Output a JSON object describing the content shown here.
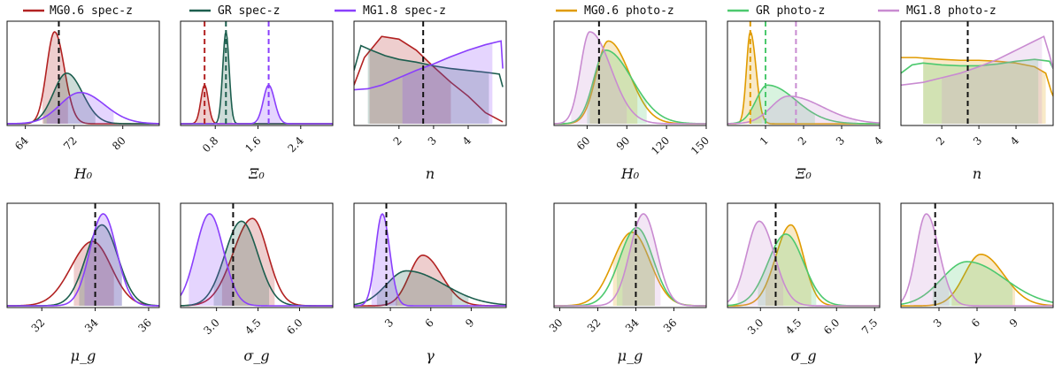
{
  "colors": {
    "MG0.6 spec-z": "#b22222",
    "GR spec-z": "#1c5e4e",
    "MG1.8 spec-z": "#8a3ffc",
    "MG0.6 photo-z": "#e09b00",
    "GR photo-z": "#4cc96e",
    "MG1.8 photo-z": "#c98bd1"
  },
  "legend": [
    {
      "label": "MG0.6 spec-z",
      "color_key": "MG0.6 spec-z"
    },
    {
      "label": "GR spec-z",
      "color_key": "GR spec-z"
    },
    {
      "label": "MG1.8 spec-z",
      "color_key": "MG1.8 spec-z"
    },
    {
      "label": "MG0.6 photo-z",
      "color_key": "MG0.6 photo-z"
    },
    {
      "label": "GR photo-z",
      "color_key": "GR photo-z"
    },
    {
      "label": "MG1.8 photo-z",
      "color_key": "MG1.8 photo-z"
    }
  ],
  "chart_data": [
    {
      "type": "line",
      "group": "spec-z",
      "xlabel": "H₀",
      "xlim": [
        61,
        86
      ],
      "xticks": [
        64,
        72,
        80
      ],
      "xticklabels": [
        "64",
        "72",
        "80"
      ],
      "truth": 69.5,
      "series": [
        {
          "name": "MG0.6 spec-z",
          "peak": 68.8,
          "sl": 1.3,
          "sr": 1.6,
          "amp": 1.0,
          "ci": [
            66.8,
            71.0
          ],
          "truth_color": null
        },
        {
          "name": "GR spec-z",
          "peak": 70.8,
          "sl": 2.2,
          "sr": 2.6,
          "amp": 0.55,
          "ci": [
            67.0,
            75.5
          ]
        },
        {
          "name": "MG1.8 spec-z",
          "peak": 73.0,
          "sl": 3.3,
          "sr": 4.0,
          "amp": 0.34,
          "ci": [
            67.5,
            78.5
          ]
        }
      ]
    },
    {
      "type": "line",
      "group": "spec-z",
      "xlabel": "Ξ₀",
      "xlim": [
        0.15,
        3.0
      ],
      "xticks": [
        0.8,
        1.6,
        2.4
      ],
      "xticklabels": [
        "0.8",
        "1.6",
        "2.4"
      ],
      "truth_lines": [
        {
          "x": 0.6,
          "color_key": "MG0.6 spec-z"
        },
        {
          "x": 1.0,
          "color_key": "GR spec-z"
        },
        {
          "x": 1.8,
          "color_key": "MG1.8 spec-z"
        }
      ],
      "series": [
        {
          "name": "MG0.6 spec-z",
          "peak": 0.6,
          "sl": 0.07,
          "sr": 0.07,
          "amp": 0.42,
          "ci": [
            0.45,
            0.75
          ]
        },
        {
          "name": "GR spec-z",
          "peak": 1.0,
          "sl": 0.06,
          "sr": 0.06,
          "amp": 1.0,
          "ci": [
            0.88,
            1.12
          ]
        },
        {
          "name": "MG1.8 spec-z",
          "peak": 1.8,
          "sl": 0.1,
          "sr": 0.11,
          "amp": 0.42,
          "ci": [
            1.6,
            2.02
          ]
        }
      ]
    },
    {
      "type": "line",
      "group": "spec-z",
      "xlabel": "n",
      "xlim": [
        0.7,
        5.1
      ],
      "xticks": [
        2,
        3,
        4
      ],
      "xticklabels": [
        "2",
        "3",
        "4"
      ],
      "truth": 2.7,
      "series": [
        {
          "name": "MG0.6 spec-z",
          "xs": [
            0.7,
            1.0,
            1.5,
            2.0,
            2.5,
            3.0,
            3.5,
            4.0,
            4.5,
            5.0
          ],
          "ys": [
            0.42,
            0.72,
            0.95,
            0.92,
            0.8,
            0.62,
            0.45,
            0.3,
            0.12,
            0.02
          ],
          "ci": [
            1.15,
            3.5
          ]
        },
        {
          "name": "GR spec-z",
          "xs": [
            0.7,
            0.9,
            1.2,
            1.6,
            2.0,
            2.5,
            3.0,
            3.5,
            4.0,
            4.5,
            4.9,
            5.0
          ],
          "ys": [
            0.58,
            0.85,
            0.8,
            0.74,
            0.7,
            0.67,
            0.63,
            0.6,
            0.58,
            0.56,
            0.54,
            0.4
          ],
          "ci": [
            1.1,
            4.6
          ]
        },
        {
          "name": "MG1.8 spec-z",
          "xs": [
            0.7,
            1.1,
            1.5,
            2.0,
            2.5,
            3.0,
            3.5,
            4.0,
            4.5,
            4.95,
            5.0
          ],
          "ys": [
            0.37,
            0.38,
            0.42,
            0.5,
            0.58,
            0.65,
            0.73,
            0.8,
            0.86,
            0.9,
            0.6
          ],
          "ci": [
            2.1,
            4.7
          ]
        }
      ]
    },
    {
      "type": "line",
      "group": "spec-z",
      "xlabel": "μ_g",
      "xlim": [
        30.7,
        36.4
      ],
      "xticks": [
        32,
        34,
        36
      ],
      "xticklabels": [
        "32",
        "34",
        "36"
      ],
      "truth": 34.0,
      "series": [
        {
          "name": "MG0.6 spec-z",
          "peak": 33.9,
          "sl": 0.8,
          "sr": 0.7,
          "amp": 0.7,
          "ci": [
            33.2,
            34.7
          ]
        },
        {
          "name": "GR spec-z",
          "peak": 34.25,
          "sl": 0.6,
          "sr": 0.6,
          "amp": 0.88,
          "ci": [
            33.4,
            35.0
          ]
        },
        {
          "name": "MG1.8 spec-z",
          "peak": 34.3,
          "sl": 0.5,
          "sr": 0.5,
          "amp": 1.0,
          "ci": [
            33.6,
            35.0
          ]
        }
      ]
    },
    {
      "type": "line",
      "group": "spec-z",
      "xlabel": "σ_g",
      "xlim": [
        1.7,
        7.2
      ],
      "xticks": [
        3.0,
        4.5,
        6.0
      ],
      "xticklabels": [
        "3.0",
        "4.5",
        "6.0"
      ],
      "truth": 3.6,
      "series": [
        {
          "name": "MG0.6 spec-z",
          "peak": 4.3,
          "sl": 0.7,
          "sr": 0.55,
          "amp": 0.95,
          "ci": [
            3.2,
            5.1
          ]
        },
        {
          "name": "GR spec-z",
          "peak": 3.9,
          "sl": 0.6,
          "sr": 0.6,
          "amp": 0.92,
          "ci": [
            2.9,
            4.9
          ]
        },
        {
          "name": "MG1.8 spec-z",
          "peak": 2.75,
          "sl": 0.5,
          "sr": 0.5,
          "amp": 1.0,
          "ci": [
            2.0,
            3.6
          ]
        }
      ]
    },
    {
      "type": "line",
      "group": "spec-z",
      "xlabel": "γ",
      "xlim": [
        0.3,
        11.6
      ],
      "xticks": [
        3,
        6,
        9
      ],
      "xticklabels": [
        "3",
        "6",
        "9"
      ],
      "truth": 2.7,
      "series": [
        {
          "name": "MG0.6 spec-z",
          "peak": 5.4,
          "sl": 1.0,
          "sr": 1.4,
          "amp": 0.55,
          "ci": [
            3.4,
            7.6
          ]
        },
        {
          "name": "GR spec-z",
          "peak": 4.2,
          "sl": 1.5,
          "sr": 2.8,
          "amp": 0.38,
          "ci": [
            2.0,
            8.8
          ]
        },
        {
          "name": "MG1.8 spec-z",
          "peak": 2.4,
          "sl": 0.5,
          "sr": 0.55,
          "amp": 1.0,
          "ci": [
            1.6,
            3.5
          ]
        }
      ]
    },
    {
      "type": "line",
      "group": "photo-z",
      "xlabel": "H₀",
      "xlim": [
        35,
        150
      ],
      "xticks": [
        60,
        90,
        120,
        150
      ],
      "xticklabels": [
        "60",
        "90",
        "120",
        "150"
      ],
      "truth": 69,
      "series": [
        {
          "name": "MG0.6 photo-z",
          "peak": 76,
          "sl": 9,
          "sr": 16,
          "amp": 0.9,
          "ci": [
            62,
            98
          ]
        },
        {
          "name": "GR photo-z",
          "peak": 74,
          "sl": 9,
          "sr": 20,
          "amp": 0.8,
          "ci": [
            60,
            105
          ]
        },
        {
          "name": "MG1.8 photo-z",
          "peak": 62,
          "sl": 7,
          "sr": 16,
          "amp": 1.0,
          "ci": [
            48,
            90
          ]
        }
      ]
    },
    {
      "type": "line",
      "group": "photo-z",
      "xlabel": "Ξ₀",
      "xlim": [
        0.0,
        4.0
      ],
      "xticks": [
        1,
        2,
        3,
        4
      ],
      "xticklabels": [
        "1",
        "2",
        "3",
        "4"
      ],
      "truth_lines": [
        {
          "x": 0.6,
          "color_key": "MG0.6 photo-z"
        },
        {
          "x": 1.0,
          "color_key": "GR photo-z"
        },
        {
          "x": 1.8,
          "color_key": "MG1.8 photo-z"
        }
      ],
      "series": [
        {
          "name": "MG0.6 photo-z",
          "peak": 0.6,
          "sl": 0.1,
          "sr": 0.15,
          "amp": 1.0,
          "ci": [
            0.4,
            0.9
          ]
        },
        {
          "name": "GR photo-z",
          "peak": 1.05,
          "sl": 0.3,
          "sr": 0.75,
          "amp": 0.42,
          "ci": [
            0.6,
            2.3
          ]
        },
        {
          "name": "MG1.8 photo-z",
          "peak": 1.6,
          "sl": 0.45,
          "sr": 0.9,
          "amp": 0.3,
          "ci": [
            0.9,
            3.4
          ]
        }
      ]
    },
    {
      "type": "line",
      "group": "photo-z",
      "xlabel": "n",
      "xlim": [
        0.9,
        5.0
      ],
      "xticks": [
        2,
        3,
        4
      ],
      "xticklabels": [
        "2",
        "3",
        "4"
      ],
      "truth": 2.7,
      "series": [
        {
          "name": "MG0.6 photo-z",
          "xs": [
            0.9,
            1.3,
            2.0,
            2.5,
            3.0,
            3.5,
            4.0,
            4.5,
            4.8,
            4.95,
            5.0
          ],
          "ys": [
            0.72,
            0.72,
            0.7,
            0.69,
            0.69,
            0.68,
            0.66,
            0.62,
            0.55,
            0.35,
            0.3
          ],
          "ci": [
            1.5,
            4.8
          ]
        },
        {
          "name": "GR photo-z",
          "xs": [
            0.9,
            1.2,
            1.5,
            2.0,
            2.5,
            3.0,
            3.5,
            4.0,
            4.5,
            4.9,
            5.0
          ],
          "ys": [
            0.55,
            0.64,
            0.66,
            0.64,
            0.63,
            0.63,
            0.65,
            0.68,
            0.7,
            0.68,
            0.6
          ],
          "ci": [
            1.5,
            4.6
          ]
        },
        {
          "name": "MG1.8 photo-z",
          "xs": [
            0.9,
            1.5,
            2.0,
            2.5,
            3.0,
            3.5,
            4.0,
            4.5,
            4.75,
            4.9,
            5.0
          ],
          "ys": [
            0.42,
            0.45,
            0.5,
            0.55,
            0.62,
            0.7,
            0.8,
            0.9,
            0.95,
            0.75,
            0.6
          ],
          "ci": [
            2.0,
            4.7
          ]
        }
      ]
    },
    {
      "type": "line",
      "group": "photo-z",
      "xlabel": "μ_g",
      "xlim": [
        29.7,
        37.7
      ],
      "xticks": [
        30,
        32,
        34,
        36
      ],
      "xticklabels": [
        "30",
        "32",
        "34",
        "36"
      ],
      "truth": 34.0,
      "series": [
        {
          "name": "MG0.6 photo-z",
          "peak": 33.8,
          "sl": 1.0,
          "sr": 0.95,
          "amp": 0.8,
          "ci": [
            32.8,
            35.0
          ]
        },
        {
          "name": "GR photo-z",
          "peak": 34.05,
          "sl": 0.9,
          "sr": 0.85,
          "amp": 0.85,
          "ci": [
            33.0,
            35.0
          ]
        },
        {
          "name": "MG1.8 photo-z",
          "peak": 34.4,
          "sl": 0.7,
          "sr": 0.7,
          "amp": 1.0,
          "ci": [
            33.3,
            35.3
          ]
        }
      ]
    },
    {
      "type": "line",
      "group": "photo-z",
      "xlabel": "σ_g",
      "xlim": [
        1.7,
        7.7
      ],
      "xticks": [
        3.0,
        4.5,
        6.0,
        7.5
      ],
      "xticklabels": [
        "3.0",
        "4.5",
        "6.0",
        "7.5"
      ],
      "truth": 3.6,
      "series": [
        {
          "name": "MG0.6 photo-z",
          "peak": 4.2,
          "sl": 0.6,
          "sr": 0.5,
          "amp": 0.88,
          "ci": [
            3.2,
            5.0
          ]
        },
        {
          "name": "GR photo-z",
          "peak": 4.0,
          "sl": 0.7,
          "sr": 0.7,
          "amp": 0.78,
          "ci": [
            2.9,
            5.2
          ]
        },
        {
          "name": "MG1.8 photo-z",
          "peak": 2.95,
          "sl": 0.5,
          "sr": 0.6,
          "amp": 0.92,
          "ci": [
            2.1,
            3.9
          ]
        }
      ]
    },
    {
      "type": "line",
      "group": "photo-z",
      "xlabel": "γ",
      "xlim": [
        0.0,
        12.0
      ],
      "xticks": [
        3,
        6,
        9
      ],
      "xticklabels": [
        "3",
        "6",
        "9"
      ],
      "truth": 2.7,
      "series": [
        {
          "name": "MG0.6 photo-z",
          "peak": 6.3,
          "sl": 1.3,
          "sr": 1.8,
          "amp": 0.56,
          "ci": [
            4.0,
            9.0
          ]
        },
        {
          "name": "GR photo-z",
          "peak": 5.2,
          "sl": 2.0,
          "sr": 3.0,
          "amp": 0.48,
          "ci": [
            2.5,
            8.8
          ]
        },
        {
          "name": "MG1.8 photo-z",
          "peak": 2.0,
          "sl": 0.8,
          "sr": 1.0,
          "amp": 1.0,
          "ci": [
            0.7,
            3.8
          ]
        }
      ]
    }
  ]
}
